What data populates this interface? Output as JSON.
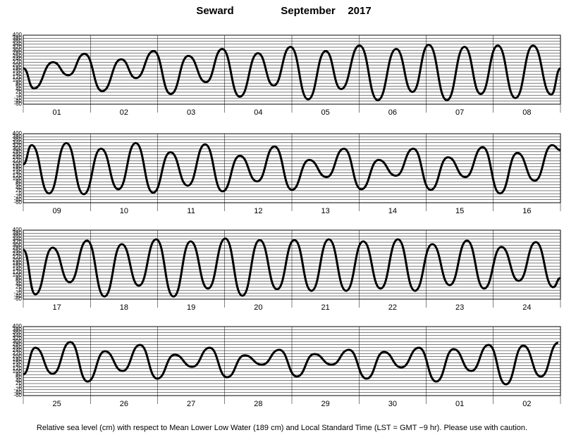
{
  "header": {
    "station": "Seward",
    "month": "September",
    "year": "2017"
  },
  "footer": "Relative sea level (cm) with respect to Mean Lower Low Water (189 cm) and Local Standard Time (LST = GMT −9 hr). Please use with caution.",
  "chart_data": [
    {
      "type": "line",
      "xlim": [
        0,
        192
      ],
      "ylim": [
        -60,
        400
      ],
      "yticks": [
        -60,
        -40,
        -20,
        0,
        20,
        40,
        60,
        80,
        100,
        120,
        140,
        160,
        180,
        200,
        220,
        240,
        260,
        280,
        300,
        320,
        340,
        360,
        380,
        400
      ],
      "xticks": [
        0,
        24,
        48,
        72,
        96,
        120,
        144,
        168,
        192
      ],
      "grid": true,
      "categories": [
        "01",
        "02",
        "03",
        "04",
        "05",
        "06",
        "07",
        "08"
      ],
      "series": [
        {
          "color": "#000000",
          "x": [
            0,
            3.8,
            10.6,
            16.1,
            21.9,
            28.2,
            35.0,
            40.3,
            46.6,
            52.7,
            59.0,
            65.3,
            71.1,
            77.4,
            83.9,
            89.5,
            95.5,
            101.8,
            108.1,
            113.6,
            120.2,
            126.7,
            133.3,
            139.1,
            144.9,
            151.4,
            157.7,
            163.5,
            169.6,
            175.9,
            182.2,
            188.7,
            192
          ],
          "values": [
            180,
            45,
            220,
            133,
            276,
            27,
            239,
            114,
            294,
            8,
            262,
            87,
            308,
            -10,
            280,
            64,
            322,
            -28,
            294,
            41,
            331,
            -33,
            308,
            22,
            336,
            -33,
            322,
            8,
            331,
            -19,
            331,
            4,
            179
          ]
        }
      ]
    },
    {
      "type": "line",
      "xlim": [
        0,
        192
      ],
      "ylim": [
        -60,
        400
      ],
      "yticks": [
        -60,
        -40,
        -20,
        0,
        20,
        40,
        60,
        80,
        100,
        120,
        140,
        160,
        180,
        200,
        220,
        240,
        260,
        280,
        300,
        320,
        340,
        360,
        380,
        400
      ],
      "xticks": [
        0,
        24,
        48,
        72,
        96,
        120,
        144,
        168,
        192
      ],
      "grid": true,
      "categories": [
        "09",
        "10",
        "11",
        "12",
        "13",
        "14",
        "15",
        "16"
      ],
      "series": [
        {
          "color": "#000000",
          "x": [
            0,
            3.0,
            9.2,
            15.4,
            21.6,
            27.8,
            34.0,
            40.2,
            46.4,
            52.6,
            58.8,
            65.0,
            71.2,
            77.4,
            83.6,
            89.8,
            96.0,
            102.2,
            108.4,
            114.6,
            120.8,
            127.0,
            133.2,
            139.4,
            145.6,
            151.8,
            158.0,
            164.2,
            170.4,
            176.6,
            182.8,
            189.0,
            192
          ],
          "values": [
            196,
            324,
            2,
            338,
            -3,
            300,
            30,
            338,
            7,
            277,
            54,
            329,
            16,
            253,
            82,
            315,
            26,
            225,
            111,
            300,
            30,
            225,
            120,
            300,
            26,
            243,
            111,
            310,
            2,
            272,
            87,
            324,
            291
          ]
        }
      ]
    },
    {
      "type": "line",
      "xlim": [
        0,
        192
      ],
      "ylim": [
        -60,
        400
      ],
      "yticks": [
        -60,
        -40,
        -20,
        0,
        20,
        40,
        60,
        80,
        100,
        120,
        140,
        160,
        180,
        200,
        220,
        240,
        260,
        280,
        300,
        320,
        340,
        360,
        380,
        400
      ],
      "xticks": [
        0,
        24,
        48,
        72,
        96,
        120,
        144,
        168,
        192
      ],
      "grid": true,
      "categories": [
        "17",
        "18",
        "19",
        "20",
        "21",
        "22",
        "23",
        "24"
      ],
      "series": [
        {
          "color": "#000000",
          "x": [
            0,
            4.3,
            10.5,
            16.6,
            22.8,
            29.0,
            35.2,
            41.3,
            47.5,
            53.7,
            59.8,
            66.0,
            72.2,
            78.3,
            84.5,
            90.7,
            96.9,
            103.0,
            109.2,
            115.4,
            121.5,
            127.7,
            133.9,
            140.0,
            146.2,
            152.4,
            158.6,
            164.7,
            170.9,
            177.1,
            183.2,
            189.4,
            192
          ],
          "values": [
            269,
            -28,
            283,
            53,
            330,
            -42,
            306,
            30,
            339,
            -42,
            325,
            11,
            344,
            -37,
            334,
            6,
            334,
            -4,
            339,
            -4,
            325,
            11,
            339,
            -4,
            306,
            34,
            330,
            11,
            288,
            62,
            320,
            20,
            81
          ]
        }
      ]
    },
    {
      "type": "line",
      "xlim": [
        0,
        192
      ],
      "ylim": [
        -60,
        400
      ],
      "yticks": [
        -60,
        -40,
        -20,
        0,
        20,
        40,
        60,
        80,
        100,
        120,
        140,
        160,
        180,
        200,
        220,
        240,
        260,
        280,
        300,
        320,
        340,
        360,
        380,
        400
      ],
      "xticks": [
        0,
        24,
        48,
        72,
        96,
        120,
        144,
        168,
        192
      ],
      "grid": true,
      "categories": [
        "25",
        "26",
        "27",
        "28",
        "29",
        "30",
        "01",
        "02"
      ],
      "series": [
        {
          "color": "#000000",
          "x": [
            0,
            4.3,
            10.5,
            16.8,
            23.0,
            29.2,
            35.5,
            41.7,
            47.9,
            54.1,
            60.4,
            66.6,
            72.8,
            79.1,
            85.3,
            91.5,
            97.8,
            104.0,
            110.2,
            116.4,
            122.7,
            128.9,
            135.1,
            141.4,
            147.6,
            153.8,
            160.1,
            166.3,
            172.5,
            178.7,
            185.0,
            191.2
          ],
          "values": [
            81,
            259,
            85,
            297,
            34,
            236,
            104,
            278,
            53,
            212,
            132,
            259,
            62,
            208,
            146,
            245,
            67,
            217,
            146,
            245,
            53,
            231,
            128,
            259,
            34,
            250,
            104,
            278,
            15,
            273,
            67,
            292
          ]
        }
      ]
    }
  ]
}
